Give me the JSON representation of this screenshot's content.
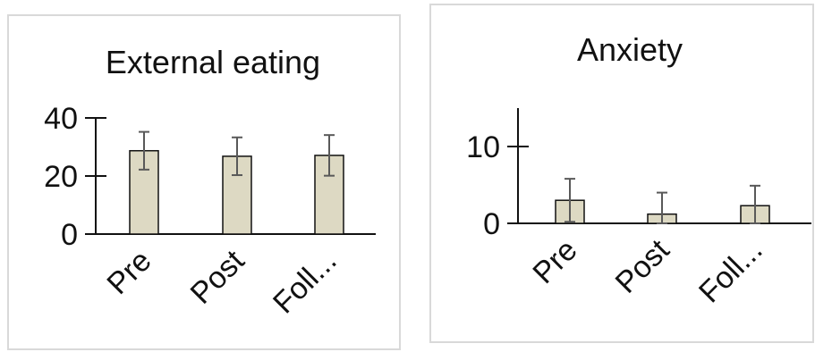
{
  "chart_data": [
    {
      "type": "bar",
      "title": "External eating",
      "categories": [
        "Pre",
        "Post",
        "Foll..."
      ],
      "values": [
        28.7,
        26.8,
        27.1
      ],
      "errors": [
        6.5,
        6.5,
        7.0
      ],
      "ylim": [
        0,
        40
      ],
      "yticks": [
        0,
        20,
        40
      ],
      "xlabel": "",
      "ylabel": "",
      "grid": false,
      "bar_color": "#ddd9c3",
      "bar_edge": "#111111",
      "error_color": "#595959"
    },
    {
      "type": "bar",
      "title": "Anxiety",
      "categories": [
        "Pre",
        "Post",
        "Foll..."
      ],
      "values": [
        3.0,
        1.2,
        2.3
      ],
      "errors": [
        2.8,
        2.8,
        2.6
      ],
      "ylim": [
        0,
        15
      ],
      "yticks": [
        0,
        10
      ],
      "xlabel": "",
      "ylabel": "",
      "grid": false,
      "bar_color": "#ddd9c3",
      "bar_edge": "#111111",
      "error_color": "#595959"
    }
  ]
}
